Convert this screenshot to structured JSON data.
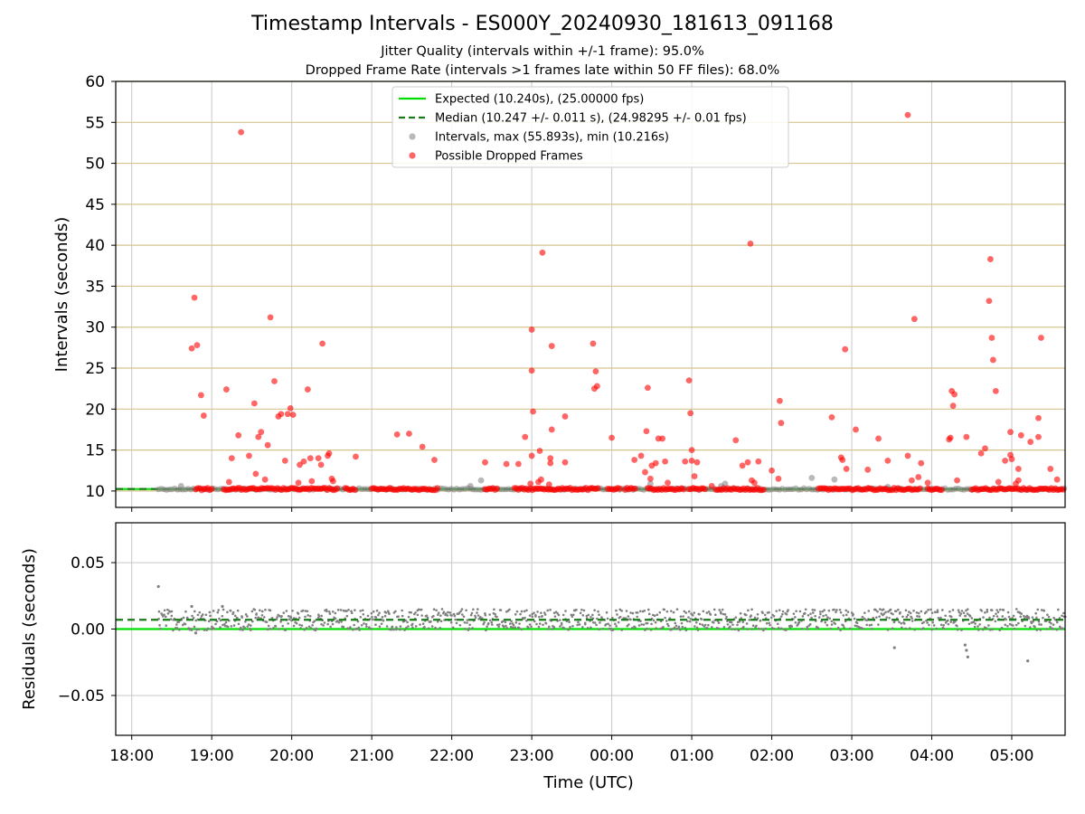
{
  "chart_data": [
    {
      "type": "scatter",
      "title": "Timestamp Intervals - ES000Y_20240930_181613_091168",
      "subtitle_1": "Jitter Quality (intervals within +/-1 frame): 95.0%",
      "subtitle_2": "Dropped Frame Rate (intervals >1 frames late within 50 FF files): 68.0%",
      "ylabel": "Intervals (seconds)",
      "ylim": [
        8,
        60
      ],
      "yticks": [
        "10",
        "15",
        "20",
        "25",
        "30",
        "35",
        "40",
        "45",
        "50",
        "55",
        "60"
      ],
      "xlim": [
        "17:48",
        "05:40"
      ],
      "grid": true,
      "legend_position": "top-center",
      "legend": [
        "Expected (10.240s), (25.00000 fps)",
        "Median (10.247 +/- 0.011 s), (24.98295 +/- 0.01 fps)",
        "Intervals, max (55.893s), min (10.216s)",
        "Possible Dropped Frames"
      ],
      "series": [
        {
          "name": "Expected (10.240s), (25.00000 fps)",
          "kind": "hline",
          "y": 10.24,
          "color": "#00dd00"
        },
        {
          "name": "Median (10.247 +/- 0.011 s), (24.98295 +/- 0.01 fps)",
          "kind": "hline",
          "y": 10.247,
          "color": "#1a7a1a"
        },
        {
          "name": "Intervals, max (55.893s), min (10.216s)",
          "kind": "scatter",
          "color": "#808080",
          "points": [
            [
              "18:37",
              10.6
            ],
            [
              "22:14",
              10.6
            ],
            [
              "22:22",
              11.3
            ],
            [
              "00:29",
              10.9
            ],
            [
              "01:22",
              10.6
            ],
            [
              "01:25",
              10.9
            ],
            [
              "02:30",
              11.6
            ],
            [
              "02:47",
              11.4
            ],
            [
              "03:27",
              10.5
            ]
          ]
        },
        {
          "name": "Possible Dropped Frames",
          "kind": "scatter",
          "color": "#ff0000",
          "dense_runs": [
            [
              "18:48",
              "19:00"
            ],
            [
              "19:09",
              "20:35"
            ],
            [
              "20:40",
              "20:48"
            ],
            [
              "21:00",
              "21:50"
            ],
            [
              "22:25",
              "22:35"
            ],
            [
              "22:47",
              "23:50"
            ],
            [
              "23:57",
              "00:05"
            ],
            [
              "00:10",
              "00:18"
            ],
            [
              "00:27",
              "00:55"
            ],
            [
              "00:58",
              "01:10"
            ],
            [
              "01:18",
              "01:55"
            ],
            [
              "02:35",
              "03:52"
            ],
            [
              "03:57",
              "04:08"
            ],
            [
              "04:30",
              "05:40"
            ]
          ],
          "points": [
            [
              "18:45",
              27.4
            ],
            [
              "18:47",
              33.6
            ],
            [
              "18:49",
              27.8
            ],
            [
              "18:52",
              21.7
            ],
            [
              "18:54",
              19.2
            ],
            [
              "19:11",
              22.4
            ],
            [
              "19:13",
              11.1
            ],
            [
              "19:15",
              14.0
            ],
            [
              "19:20",
              16.8
            ],
            [
              "19:22",
              53.8
            ],
            [
              "19:28",
              14.3
            ],
            [
              "19:32",
              20.7
            ],
            [
              "19:33",
              12.1
            ],
            [
              "19:35",
              16.6
            ],
            [
              "19:37",
              17.2
            ],
            [
              "19:40",
              11.4
            ],
            [
              "19:42",
              15.6
            ],
            [
              "19:44",
              31.2
            ],
            [
              "19:47",
              23.4
            ],
            [
              "19:50",
              19.1
            ],
            [
              "19:52",
              19.4
            ],
            [
              "19:55",
              13.7
            ],
            [
              "19:57",
              19.4
            ],
            [
              "19:59",
              20.1
            ],
            [
              "20:01",
              19.3
            ],
            [
              "20:05",
              11.0
            ],
            [
              "20:06",
              13.2
            ],
            [
              "20:09",
              13.6
            ],
            [
              "20:12",
              22.4
            ],
            [
              "20:14",
              14.0
            ],
            [
              "20:15",
              11.2
            ],
            [
              "20:20",
              14.0
            ],
            [
              "20:22",
              13.2
            ],
            [
              "20:23",
              28.0
            ],
            [
              "20:27",
              14.3
            ],
            [
              "20:28",
              14.6
            ],
            [
              "20:30",
              11.5
            ],
            [
              "20:31",
              11.2
            ],
            [
              "20:48",
              14.2
            ],
            [
              "21:19",
              16.9
            ],
            [
              "21:28",
              17.0
            ],
            [
              "21:38",
              15.4
            ],
            [
              "21:47",
              13.8
            ],
            [
              "22:25",
              13.5
            ],
            [
              "22:41",
              13.3
            ],
            [
              "22:50",
              13.3
            ],
            [
              "22:55",
              16.6
            ],
            [
              "22:59",
              10.9
            ],
            [
              "23:00",
              24.7
            ],
            [
              "23:00",
              14.3
            ],
            [
              "23:00",
              29.7
            ],
            [
              "23:01",
              19.7
            ],
            [
              "23:05",
              11.1
            ],
            [
              "23:06",
              14.9
            ],
            [
              "23:07",
              11.4
            ],
            [
              "23:08",
              39.1
            ],
            [
              "23:13",
              10.8
            ],
            [
              "23:14",
              14.0
            ],
            [
              "23:14",
              13.4
            ],
            [
              "23:15",
              27.7
            ],
            [
              "23:15",
              17.5
            ],
            [
              "23:25",
              13.5
            ],
            [
              "23:25",
              19.1
            ],
            [
              "23:46",
              28.0
            ],
            [
              "23:47",
              22.5
            ],
            [
              "23:48",
              24.6
            ],
            [
              "23:49",
              22.8
            ],
            [
              "24:00",
              16.5
            ],
            [
              "24:06",
              10.3
            ],
            [
              "24:17",
              13.8
            ],
            [
              "24:22",
              14.3
            ],
            [
              "24:25",
              12.3
            ],
            [
              "24:26",
              17.3
            ],
            [
              "24:27",
              22.6
            ],
            [
              "24:29",
              11.5
            ],
            [
              "24:30",
              13.1
            ],
            [
              "24:33",
              13.4
            ],
            [
              "24:35",
              16.4
            ],
            [
              "24:38",
              16.4
            ],
            [
              "24:40",
              13.6
            ],
            [
              "24:42",
              11.0
            ],
            [
              "24:55",
              13.6
            ],
            [
              "24:58",
              23.5
            ],
            [
              "24:59",
              19.5
            ],
            [
              "25:00",
              13.7
            ],
            [
              "25:00",
              15.0
            ],
            [
              "25:02",
              11.8
            ],
            [
              "25:04",
              13.5
            ],
            [
              "25:15",
              10.6
            ],
            [
              "25:33",
              16.2
            ],
            [
              "25:38",
              13.1
            ],
            [
              "25:42",
              13.5
            ],
            [
              "25:44",
              40.2
            ],
            [
              "25:45",
              11.3
            ],
            [
              "25:47",
              11.0
            ],
            [
              "25:50",
              13.6
            ],
            [
              "26:00",
              12.5
            ],
            [
              "26:05",
              11.5
            ],
            [
              "26:06",
              21.0
            ],
            [
              "26:07",
              18.3
            ],
            [
              "26:45",
              19.0
            ],
            [
              "26:52",
              14.1
            ],
            [
              "26:53",
              13.8
            ],
            [
              "26:55",
              27.3
            ],
            [
              "26:56",
              12.7
            ],
            [
              "27:03",
              17.5
            ],
            [
              "27:12",
              12.6
            ],
            [
              "27:20",
              16.4
            ],
            [
              "27:27",
              13.7
            ],
            [
              "27:42",
              14.3
            ],
            [
              "27:45",
              11.3
            ],
            [
              "27:47",
              31.0
            ],
            [
              "27:50",
              11.7
            ],
            [
              "27:52",
              13.4
            ],
            [
              "27:57",
              11.0
            ],
            [
              "28:13",
              16.3
            ],
            [
              "28:14",
              16.5
            ],
            [
              "28:15",
              22.2
            ],
            [
              "28:16",
              20.4
            ],
            [
              "28:17",
              21.8
            ],
            [
              "28:19",
              11.3
            ],
            [
              "28:26",
              16.6
            ],
            [
              "28:37",
              14.6
            ],
            [
              "28:40",
              15.2
            ],
            [
              "28:43",
              33.2
            ],
            [
              "28:44",
              38.3
            ],
            [
              "28:45",
              28.7
            ],
            [
              "28:46",
              26.0
            ],
            [
              "28:48",
              22.2
            ],
            [
              "28:50",
              11.1
            ],
            [
              "28:55",
              13.7
            ],
            [
              "28:59",
              17.2
            ],
            [
              "28:59",
              14.4
            ],
            [
              "29:00",
              13.9
            ],
            [
              "29:03",
              10.9
            ],
            [
              "29:05",
              11.3
            ],
            [
              "29:05",
              12.7
            ],
            [
              "29:07",
              16.8
            ],
            [
              "29:14",
              16.0
            ],
            [
              "29:20",
              18.9
            ],
            [
              "29:20",
              16.6
            ],
            [
              "29:22",
              28.7
            ],
            [
              "29:29",
              12.7
            ],
            [
              "29:34",
              11.4
            ],
            [
              "27:42",
              55.9
            ]
          ]
        }
      ]
    },
    {
      "type": "scatter",
      "ylabel": "Residuals (seconds)",
      "xlabel": "Time (UTC)",
      "ylim": [
        -0.08,
        0.08
      ],
      "yticks": [
        "−0.05",
        "0.00",
        "0.05"
      ],
      "xticks": [
        "18:00",
        "19:00",
        "20:00",
        "21:00",
        "22:00",
        "23:00",
        "00:00",
        "01:00",
        "02:00",
        "03:00",
        "04:00",
        "05:00"
      ],
      "grid": true,
      "series": [
        {
          "name": "Expected",
          "kind": "hline",
          "y": 0.0,
          "color": "#00dd00"
        },
        {
          "name": "Median",
          "kind": "hline",
          "y": 0.007,
          "color": "#1a7a1a"
        },
        {
          "name": "Residuals",
          "kind": "scatter",
          "color": "#808080",
          "band": {
            "start": "18:20",
            "end": "05:40",
            "center": 0.007,
            "spread": 0.008
          },
          "points": [
            [
              "18:20",
              0.032
            ],
            [
              "18:45",
              0.017
            ],
            [
              "18:48",
              -0.003
            ],
            [
              "19:08",
              0.017
            ],
            [
              "27:32",
              -0.014
            ],
            [
              "28:25",
              -0.012
            ],
            [
              "28:26",
              -0.016
            ],
            [
              "28:27",
              -0.021
            ],
            [
              "29:12",
              -0.024
            ]
          ]
        }
      ]
    }
  ]
}
